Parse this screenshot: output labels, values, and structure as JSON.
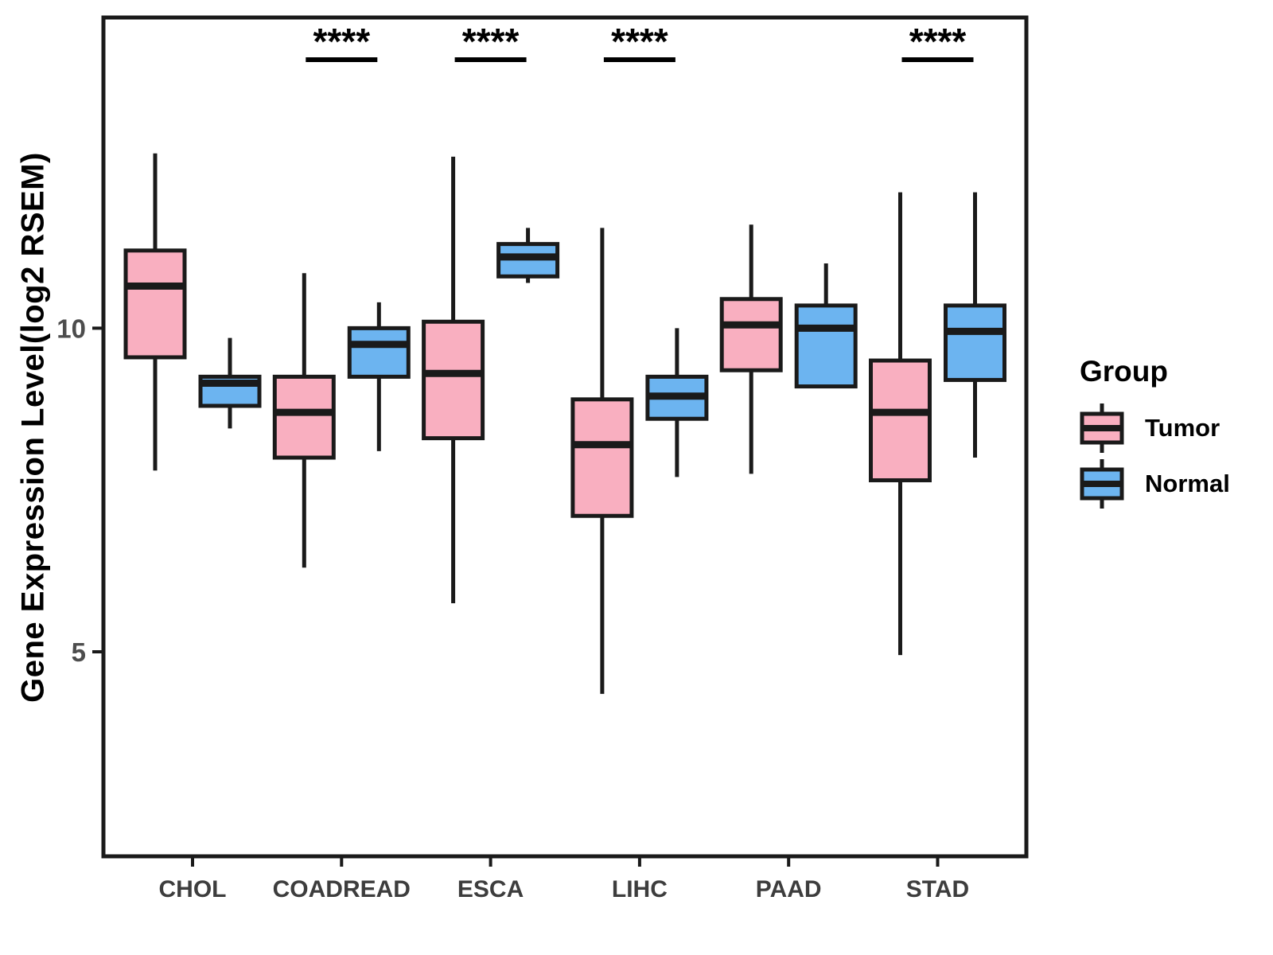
{
  "figure": {
    "background": "#ffffff"
  },
  "chart_data": {
    "type": "grouped_boxplot",
    "title": "",
    "ylabel": "Gene Expression Level(log2 RSEM)",
    "xlabel": "",
    "categories": [
      "CHOL",
      "COADREAD",
      "ESCA",
      "LIHC",
      "PAAD",
      "STAD"
    ],
    "groups": [
      {
        "name": "Tumor",
        "color": "#F9AFC0"
      },
      {
        "name": "Normal",
        "color": "#6CB4F0"
      }
    ],
    "stroke_color": "#1a1a1a",
    "yticks": [
      5,
      10
    ],
    "ylim": [
      1.84,
      14.8
    ],
    "grid": false,
    "legend_position": "right",
    "series": [
      {
        "category": "CHOL",
        "group": "Tumor",
        "whisker_low": 7.8,
        "q1": 9.55,
        "median": 10.65,
        "q3": 11.2,
        "whisker_high": 12.7
      },
      {
        "category": "CHOL",
        "group": "Normal",
        "whisker_low": 8.45,
        "q1": 8.8,
        "median": 9.15,
        "q3": 9.25,
        "whisker_high": 9.85
      },
      {
        "category": "COADREAD",
        "group": "Tumor",
        "whisker_low": 6.3,
        "q1": 8.0,
        "median": 8.7,
        "q3": 9.25,
        "whisker_high": 10.85
      },
      {
        "category": "COADREAD",
        "group": "Normal",
        "whisker_low": 8.1,
        "q1": 9.25,
        "median": 9.75,
        "q3": 10.0,
        "whisker_high": 10.4
      },
      {
        "category": "ESCA",
        "group": "Tumor",
        "whisker_low": 5.75,
        "q1": 8.3,
        "median": 9.3,
        "q3": 10.1,
        "whisker_high": 12.65
      },
      {
        "category": "ESCA",
        "group": "Normal",
        "whisker_low": 10.7,
        "q1": 10.8,
        "median": 11.1,
        "q3": 11.3,
        "whisker_high": 11.55
      },
      {
        "category": "LIHC",
        "group": "Tumor",
        "whisker_low": 4.35,
        "q1": 7.1,
        "median": 8.2,
        "q3": 8.9,
        "whisker_high": 11.55
      },
      {
        "category": "LIHC",
        "group": "Normal",
        "whisker_low": 7.7,
        "q1": 8.6,
        "median": 8.95,
        "q3": 9.25,
        "whisker_high": 10.0
      },
      {
        "category": "PAAD",
        "group": "Tumor",
        "whisker_low": 7.75,
        "q1": 9.35,
        "median": 10.05,
        "q3": 10.45,
        "whisker_high": 11.6
      },
      {
        "category": "PAAD",
        "group": "Normal",
        "whisker_low": 9.1,
        "q1": 9.1,
        "median": 10.0,
        "q3": 10.35,
        "whisker_high": 11.0
      },
      {
        "category": "STAD",
        "group": "Tumor",
        "whisker_low": 4.95,
        "q1": 7.65,
        "median": 8.7,
        "q3": 9.5,
        "whisker_high": 12.1
      },
      {
        "category": "STAD",
        "group": "Normal",
        "whisker_low": 8.0,
        "q1": 9.2,
        "median": 9.95,
        "q3": 10.35,
        "whisker_high": 12.1
      }
    ],
    "significance": [
      {
        "category": "COADREAD",
        "label": "****"
      },
      {
        "category": "ESCA",
        "label": "****"
      },
      {
        "category": "LIHC",
        "label": "****"
      },
      {
        "category": "STAD",
        "label": "****"
      }
    ],
    "legend": {
      "title": "Group",
      "items": [
        {
          "label": "Tumor"
        },
        {
          "label": "Normal"
        }
      ]
    }
  }
}
